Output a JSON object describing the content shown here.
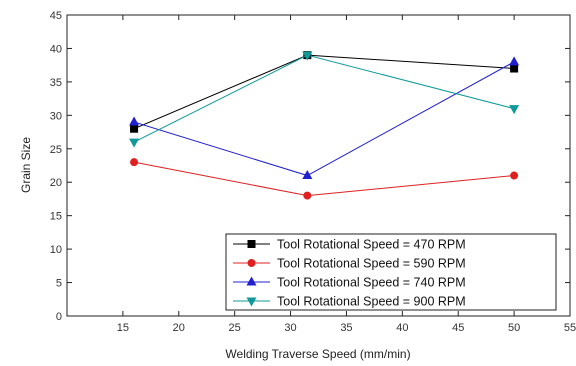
{
  "chart_data": {
    "type": "line",
    "xlabel": "Welding Traverse Speed (mm/min)",
    "ylabel": "Grain Size",
    "xlim": [
      10,
      55
    ],
    "ylim": [
      0,
      45
    ],
    "x_ticks": [
      15,
      20,
      25,
      30,
      35,
      40,
      45,
      50,
      55
    ],
    "y_ticks": [
      0,
      5,
      10,
      15,
      20,
      25,
      30,
      35,
      40,
      45
    ],
    "x": [
      16,
      31.5,
      50
    ],
    "legend_position": "bottom-right",
    "grid": false,
    "series": [
      {
        "name": "Tool Rotational Speed = 470 RPM",
        "values": [
          28,
          39,
          37
        ],
        "color": "#000000",
        "marker": "square"
      },
      {
        "name": "Tool Rotational Speed = 590 RPM",
        "values": [
          23,
          18,
          21
        ],
        "color": "#e02020",
        "marker": "circle"
      },
      {
        "name": "Tool Rotational Speed = 740 RPM",
        "values": [
          29,
          21,
          38
        ],
        "color": "#2020d0",
        "marker": "triangle-up"
      },
      {
        "name": "Tool Rotational Speed = 900 RPM",
        "values": [
          26,
          39,
          31
        ],
        "color": "#119999",
        "marker": "triangle-down"
      }
    ]
  }
}
